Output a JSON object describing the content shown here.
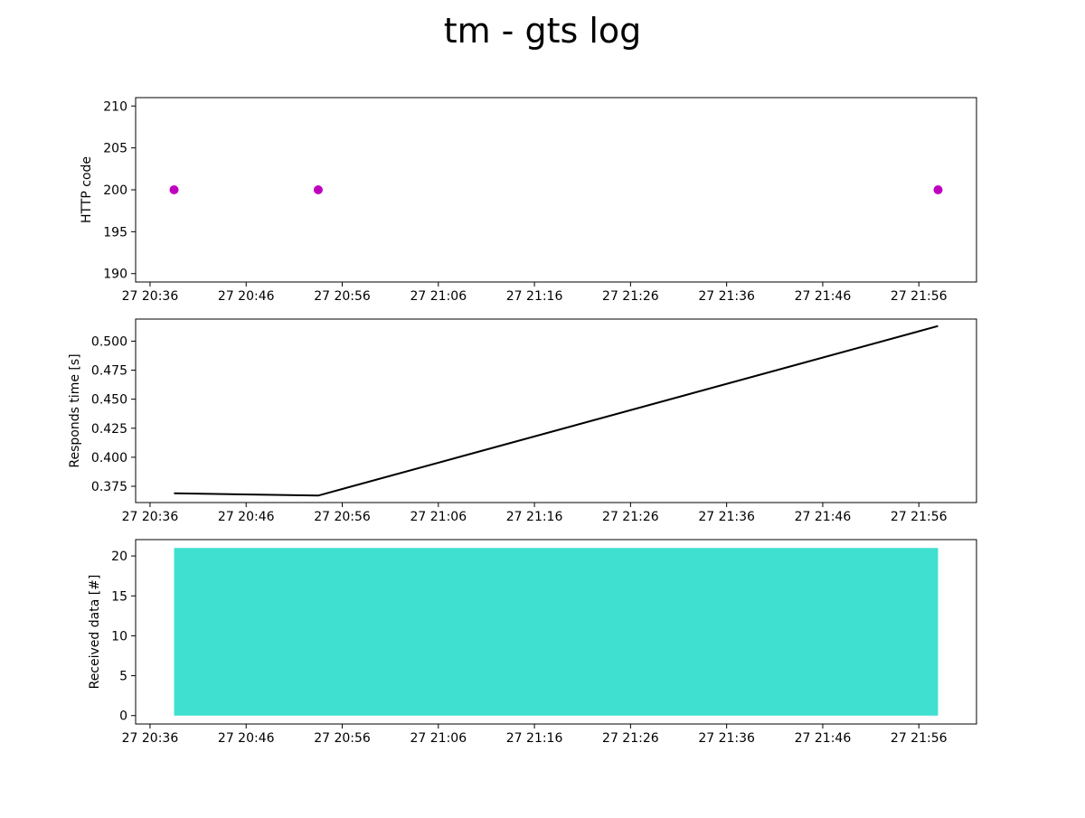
{
  "figure": {
    "title": "tm - gts log"
  },
  "chart_data": [
    {
      "type": "scatter",
      "ylabel": "HTTP code",
      "xlim": [
        "20:34:30",
        "22:02:00"
      ],
      "ylim": [
        189,
        211
      ],
      "yticks": [
        190,
        195,
        200,
        205,
        210
      ],
      "xticks": [
        {
          "t": "20:36",
          "label": "27 20:36"
        },
        {
          "t": "20:46",
          "label": "27 20:46"
        },
        {
          "t": "20:56",
          "label": "27 20:56"
        },
        {
          "t": "21:06",
          "label": "27 21:06"
        },
        {
          "t": "21:16",
          "label": "27 21:16"
        },
        {
          "t": "21:26",
          "label": "27 21:26"
        },
        {
          "t": "21:36",
          "label": "27 21:36"
        },
        {
          "t": "21:46",
          "label": "27 21:46"
        },
        {
          "t": "21:56",
          "label": "27 21:56"
        }
      ],
      "x": [
        "20:38:30",
        "20:53:30",
        "21:58:00"
      ],
      "y": [
        200,
        200,
        200
      ],
      "color": "#bf00bf"
    },
    {
      "type": "line",
      "ylabel": "Responds time [s]",
      "xlim": [
        "20:34:30",
        "22:02:00"
      ],
      "ylim": [
        0.361,
        0.519
      ],
      "yticks": [
        0.375,
        0.4,
        0.425,
        0.45,
        0.475,
        0.5
      ],
      "ytick_labels": [
        "0.375",
        "0.400",
        "0.425",
        "0.450",
        "0.475",
        "0.500"
      ],
      "xticks": [
        {
          "t": "20:36",
          "label": "27 20:36"
        },
        {
          "t": "20:46",
          "label": "27 20:46"
        },
        {
          "t": "20:56",
          "label": "27 20:56"
        },
        {
          "t": "21:06",
          "label": "27 21:06"
        },
        {
          "t": "21:16",
          "label": "27 21:16"
        },
        {
          "t": "21:26",
          "label": "27 21:26"
        },
        {
          "t": "21:36",
          "label": "27 21:36"
        },
        {
          "t": "21:46",
          "label": "27 21:46"
        },
        {
          "t": "21:56",
          "label": "27 21:56"
        }
      ],
      "x": [
        "20:38:30",
        "20:53:30",
        "21:58:00"
      ],
      "y": [
        0.369,
        0.367,
        0.513
      ],
      "color": "#000000"
    },
    {
      "type": "area",
      "ylabel": "Received data [#]",
      "xlim": [
        "20:34:30",
        "22:02:00"
      ],
      "ylim": [
        -1.05,
        22.05
      ],
      "yticks": [
        0,
        5,
        10,
        15,
        20
      ],
      "xticks": [
        {
          "t": "20:36",
          "label": "27 20:36"
        },
        {
          "t": "20:46",
          "label": "27 20:46"
        },
        {
          "t": "20:56",
          "label": "27 20:56"
        },
        {
          "t": "21:06",
          "label": "27 21:06"
        },
        {
          "t": "21:16",
          "label": "27 21:16"
        },
        {
          "t": "21:26",
          "label": "27 21:26"
        },
        {
          "t": "21:36",
          "label": "27 21:36"
        },
        {
          "t": "21:46",
          "label": "27 21:46"
        },
        {
          "t": "21:56",
          "label": "27 21:56"
        }
      ],
      "x": [
        "20:38:30",
        "20:53:30",
        "21:58:00"
      ],
      "y": [
        21,
        21,
        21
      ],
      "color": "#40e0d0"
    }
  ]
}
